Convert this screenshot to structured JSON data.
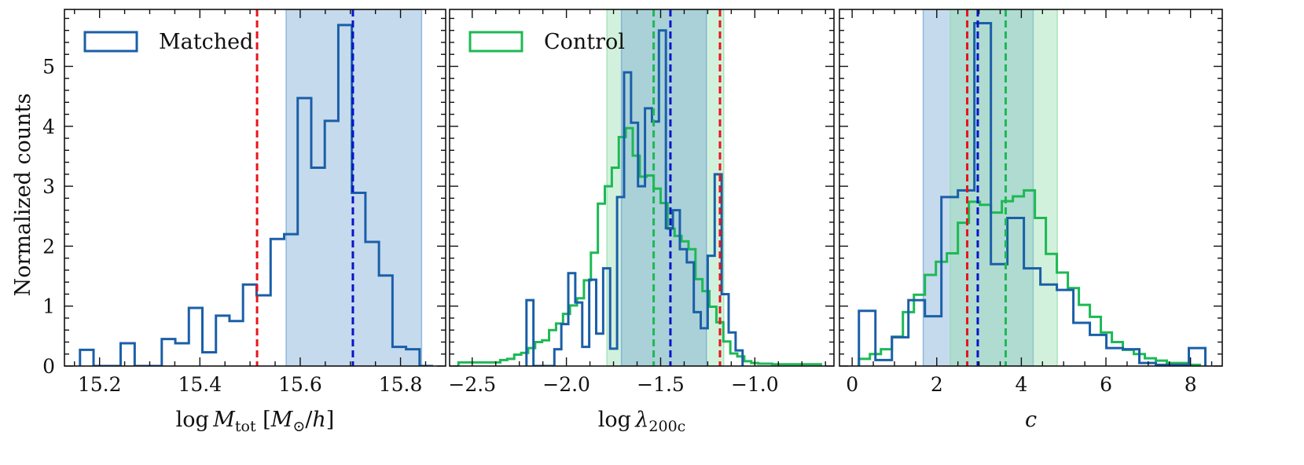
{
  "figure": {
    "ylabel": "Normalized counts",
    "colors": {
      "matched": "#1a5fa8",
      "control": "#1db954",
      "red_line": "#e8151b",
      "blue_line": "#0a14c8",
      "matched_band": "#6fa3d3",
      "control_band": "#8fdca8"
    }
  },
  "chart_data": [
    {
      "type": "histogram",
      "panel": "mass",
      "xlabel_parts": [
        "log ",
        "M",
        "tot",
        " [",
        "M",
        "⊙",
        "/",
        "h",
        "]"
      ],
      "xlim": [
        15.13,
        15.89
      ],
      "ylim": [
        0,
        5.95
      ],
      "xticks": [
        15.2,
        15.4,
        15.6,
        15.8
      ],
      "xtick_labels": [
        "15.2",
        "15.4",
        "15.6",
        "15.8"
      ],
      "yticks": [
        0,
        1,
        2,
        3,
        4,
        5
      ],
      "ytick_labels": [
        "0",
        "1",
        "2",
        "3",
        "4",
        "5"
      ],
      "legend": {
        "label": "Matched",
        "position": "top-left",
        "series": "matched"
      },
      "bands": [
        {
          "from": 15.572,
          "to": 15.842,
          "color": "matched_band"
        }
      ],
      "vlines": [
        {
          "x": 15.514,
          "color": "red_line"
        },
        {
          "x": 15.705,
          "color": "blue_line"
        }
      ],
      "series": [
        {
          "name": "Matched",
          "color": "matched",
          "edges": [
            15.161,
            15.188,
            15.215,
            15.242,
            15.27,
            15.297,
            15.324,
            15.351,
            15.378,
            15.405,
            15.432,
            15.459,
            15.486,
            15.513,
            15.541,
            15.568,
            15.595,
            15.622,
            15.649,
            15.676,
            15.703,
            15.73,
            15.757,
            15.784,
            15.811,
            15.838,
            15.865
          ],
          "values": [
            0.27,
            0.0,
            0.0,
            0.38,
            0.0,
            0.0,
            0.45,
            0.38,
            0.97,
            0.23,
            0.84,
            0.75,
            1.36,
            1.18,
            2.12,
            2.2,
            4.47,
            3.31,
            4.09,
            5.69,
            2.89,
            2.07,
            1.51,
            0.32,
            0.28,
            0.0
          ]
        }
      ]
    },
    {
      "type": "histogram",
      "panel": "lambda",
      "xlabel_parts": [
        "log ",
        "λ",
        "200c"
      ],
      "xlim": [
        -2.62,
        -0.58
      ],
      "ylim": [
        0,
        5.95
      ],
      "xticks": [
        -2.5,
        -2.0,
        -1.5,
        -1.0
      ],
      "xtick_labels": [
        "−2.5",
        "−2.0",
        "−1.5",
        "−1.0"
      ],
      "yticks": [
        0,
        1,
        2,
        3,
        4,
        5
      ],
      "ytick_labels": [],
      "legend": {
        "label": "Control",
        "position": "top-left",
        "series": "control"
      },
      "bands": [
        {
          "from": -1.785,
          "to": -1.165,
          "color": "control_band"
        },
        {
          "from": -1.708,
          "to": -1.257,
          "color": "matched_band"
        }
      ],
      "vlines": [
        {
          "x": -1.537,
          "color": "control"
        },
        {
          "x": -1.448,
          "color": "blue_line"
        },
        {
          "x": -1.185,
          "color": "red_line"
        }
      ],
      "series": [
        {
          "name": "Control",
          "color": "control",
          "edges": [
            -2.573,
            -2.536,
            -2.499,
            -2.462,
            -2.425,
            -2.388,
            -2.351,
            -2.314,
            -2.277,
            -2.24,
            -2.203,
            -2.166,
            -2.129,
            -2.092,
            -2.055,
            -2.018,
            -1.981,
            -1.944,
            -1.907,
            -1.87,
            -1.833,
            -1.796,
            -1.759,
            -1.722,
            -1.685,
            -1.648,
            -1.611,
            -1.574,
            -1.537,
            -1.5,
            -1.463,
            -1.426,
            -1.389,
            -1.352,
            -1.315,
            -1.278,
            -1.241,
            -1.204,
            -1.167,
            -1.13,
            -1.093,
            -1.056,
            -1.019,
            -0.982,
            -0.945,
            -0.908,
            -0.871,
            -0.834,
            -0.797,
            -0.76,
            -0.723,
            -0.686,
            -0.649
          ],
          "values": [
            0.06,
            0.06,
            0.06,
            0.06,
            0.06,
            0.06,
            0.1,
            0.12,
            0.19,
            0.22,
            0.3,
            0.4,
            0.43,
            0.6,
            0.71,
            0.87,
            1.01,
            1.13,
            1.43,
            1.89,
            2.71,
            3.0,
            3.31,
            3.82,
            3.97,
            3.51,
            3.16,
            3.18,
            2.96,
            2.72,
            2.29,
            2.17,
            2.08,
            1.95,
            1.45,
            1.25,
            0.99,
            0.73,
            0.41,
            0.21,
            0.16,
            0.08,
            0.05,
            0.04,
            0.04,
            0.03,
            0.03,
            0.03,
            0.03,
            0.03,
            0.03,
            0.03
          ]
        },
        {
          "name": "Matched",
          "color": "matched",
          "edges": [
            -2.212,
            -2.175,
            -2.138,
            -2.101,
            -2.064,
            -2.027,
            -1.99,
            -1.953,
            -1.916,
            -1.879,
            -1.842,
            -1.805,
            -1.768,
            -1.731,
            -1.694,
            -1.657,
            -1.62,
            -1.583,
            -1.546,
            -1.509,
            -1.472,
            -1.435,
            -1.398,
            -1.361,
            -1.324,
            -1.287,
            -1.25,
            -1.213,
            -1.176,
            -1.139,
            -1.102,
            -1.065
          ],
          "values": [
            1.1,
            0.0,
            0.0,
            0.0,
            0.28,
            0.7,
            1.55,
            1.06,
            0.32,
            1.44,
            0.54,
            1.63,
            0.29,
            2.82,
            4.9,
            4.06,
            3.0,
            4.3,
            4.08,
            5.6,
            2.3,
            2.6,
            1.95,
            1.73,
            0.9,
            0.63,
            1.84,
            3.2,
            1.2,
            0.56,
            0.26
          ]
        }
      ]
    },
    {
      "type": "histogram",
      "panel": "concentration",
      "xlabel_parts": [
        "c"
      ],
      "xlim": [
        -0.3,
        8.75
      ],
      "ylim": [
        0,
        5.95
      ],
      "xticks": [
        0,
        2,
        4,
        6,
        8
      ],
      "xtick_labels": [
        "0",
        "2",
        "4",
        "6",
        "8"
      ],
      "yticks": [
        0,
        1,
        2,
        3,
        4,
        5
      ],
      "ytick_labels": [],
      "legend": null,
      "bands": [
        {
          "from": 1.68,
          "to": 4.28,
          "color": "matched_band"
        },
        {
          "from": 2.32,
          "to": 4.85,
          "color": "control_band"
        }
      ],
      "vlines": [
        {
          "x": 2.72,
          "color": "red_line"
        },
        {
          "x": 2.97,
          "color": "blue_line"
        },
        {
          "x": 3.63,
          "color": "control"
        }
      ],
      "series": [
        {
          "name": "Control",
          "color": "control",
          "edges": [
            0.16,
            0.42,
            0.68,
            0.94,
            1.2,
            1.46,
            1.72,
            1.98,
            2.24,
            2.5,
            2.76,
            3.02,
            3.28,
            3.54,
            3.8,
            4.06,
            4.32,
            4.58,
            4.84,
            5.1,
            5.36,
            5.62,
            5.88,
            6.14,
            6.4,
            6.66,
            6.92,
            7.18,
            7.44,
            7.7,
            7.96,
            8.22
          ],
          "values": [
            0.12,
            0.2,
            0.28,
            0.49,
            0.9,
            1.19,
            1.52,
            1.74,
            1.88,
            2.39,
            2.74,
            2.69,
            2.56,
            2.75,
            2.83,
            2.93,
            2.47,
            1.87,
            1.56,
            1.3,
            1.02,
            0.82,
            0.56,
            0.4,
            0.27,
            0.2,
            0.13,
            0.09,
            0.05,
            0.05,
            0.02
          ]
        },
        {
          "name": "Matched",
          "color": "matched",
          "edges": [
            0.16,
            0.55,
            0.94,
            1.33,
            1.72,
            2.11,
            2.5,
            2.89,
            3.28,
            3.67,
            4.06,
            4.45,
            4.84,
            5.23,
            5.62,
            6.01,
            6.4,
            6.79,
            7.18,
            7.57,
            7.96,
            8.35
          ],
          "values": [
            0.92,
            0.1,
            0.48,
            1.1,
            0.83,
            2.82,
            2.93,
            5.72,
            1.7,
            2.47,
            1.63,
            1.36,
            1.27,
            0.72,
            0.52,
            0.3,
            0.28,
            0.05,
            0.02,
            0.02,
            0.3
          ]
        }
      ]
    }
  ]
}
